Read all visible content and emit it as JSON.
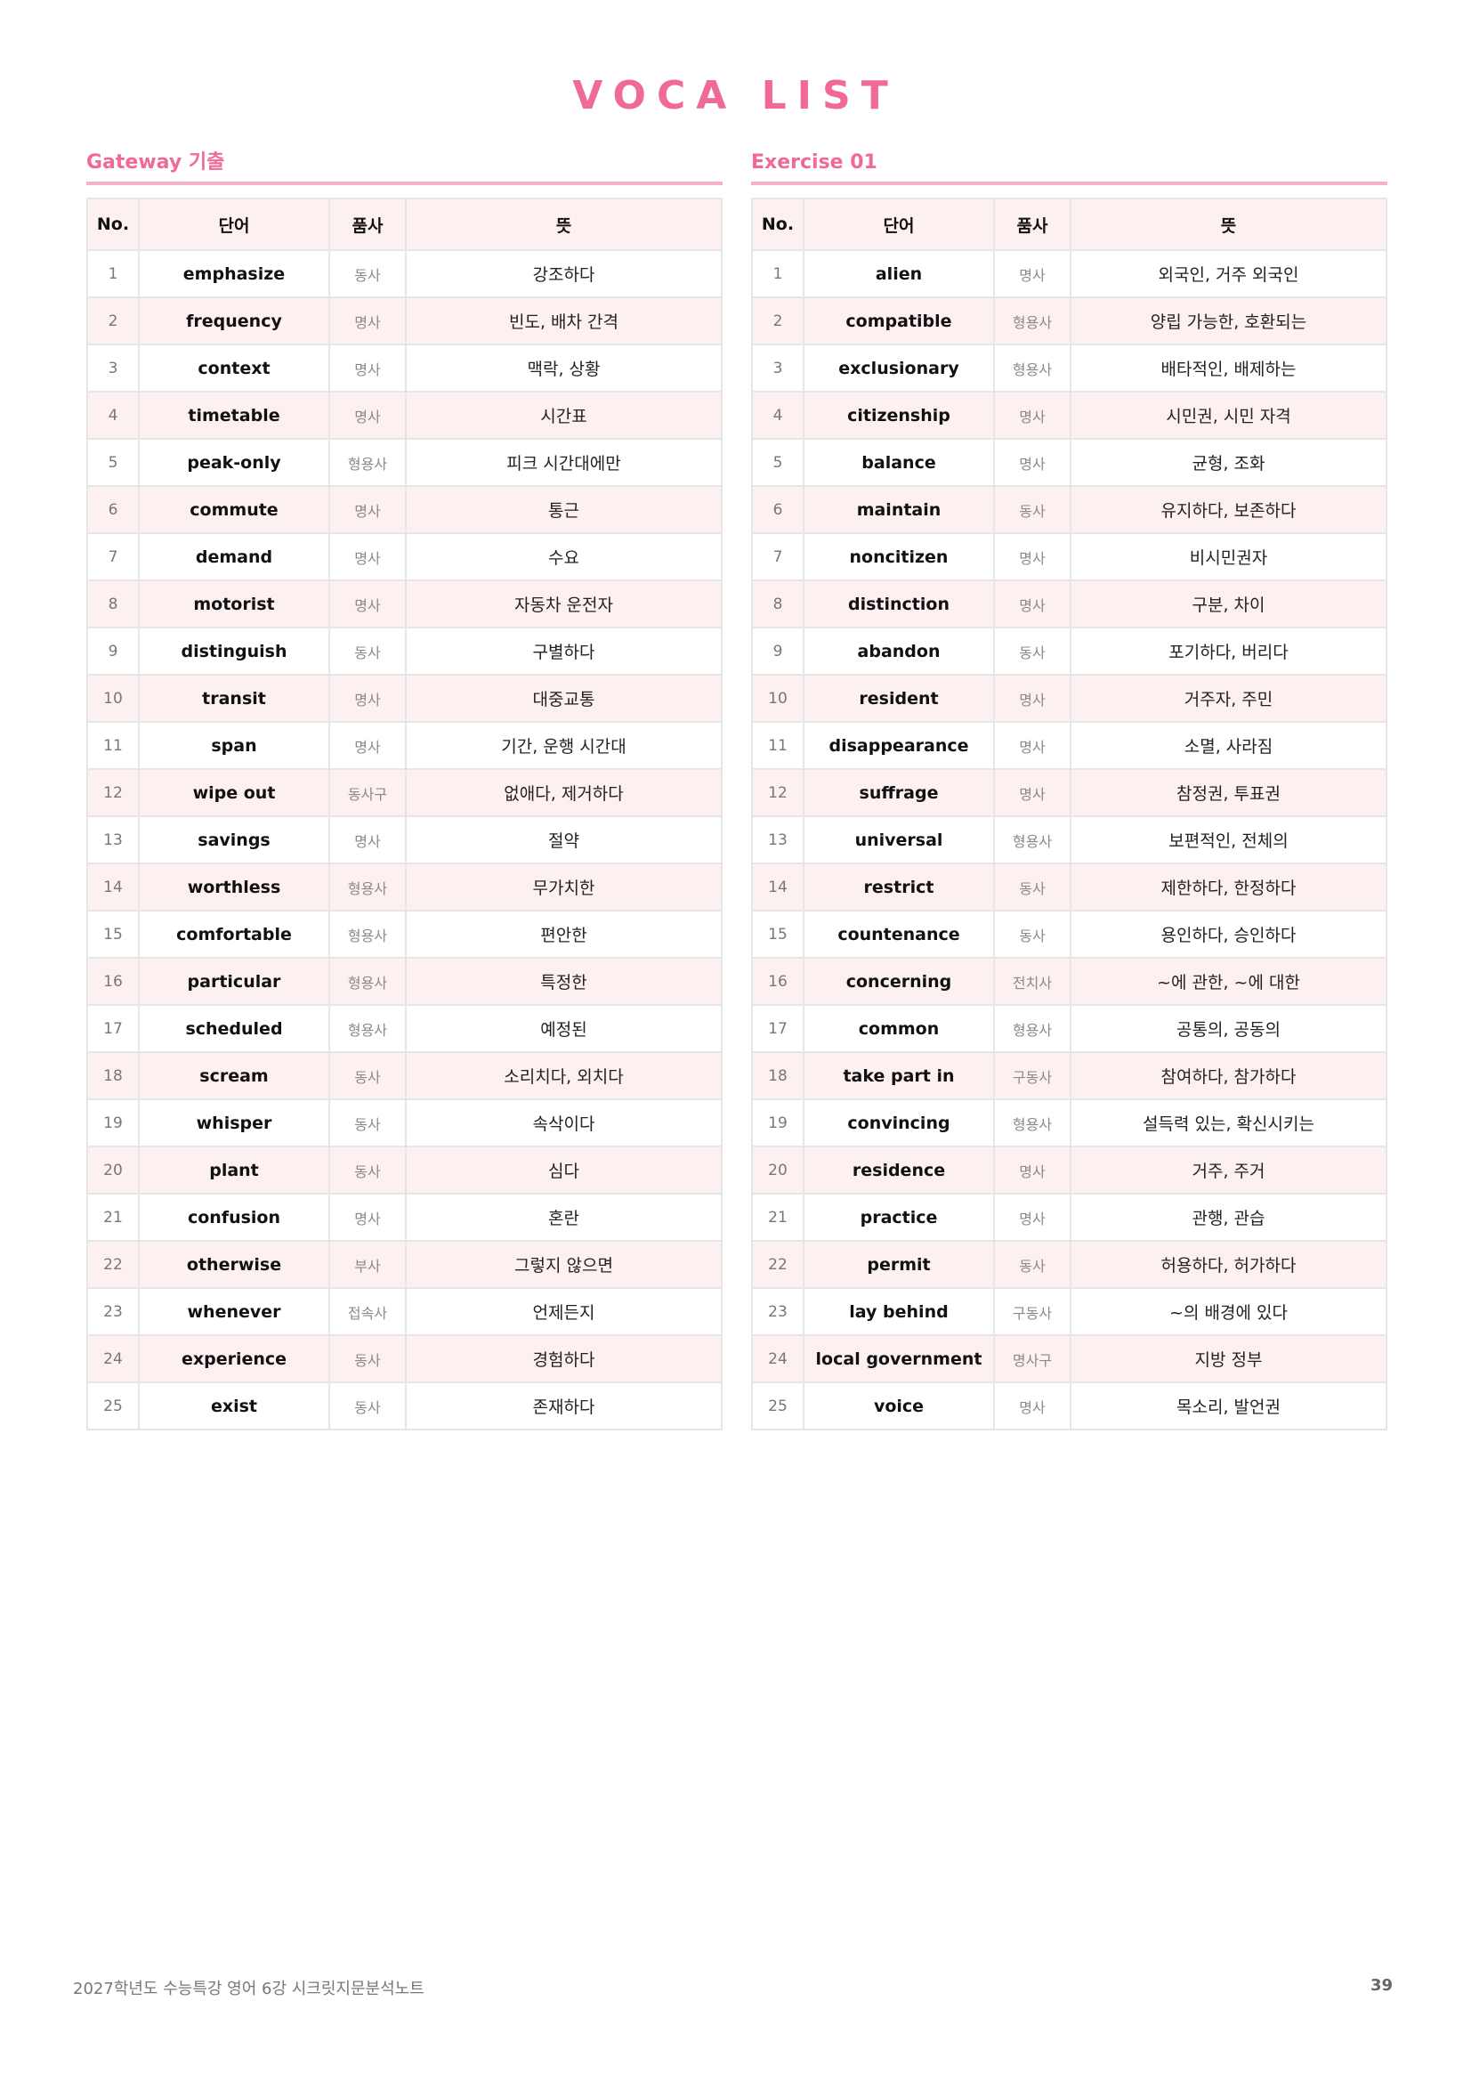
{
  "title": "VOCA LIST",
  "columns": [
    "No.",
    "단어",
    "품사",
    "뜻"
  ],
  "colors": {
    "accent": "#f06a98",
    "rule": "#f4b1c8",
    "row_alt": "#fdf0f1"
  },
  "sections": [
    {
      "label": "Gateway 기출",
      "rows": [
        [
          "1",
          "emphasize",
          "동사",
          "강조하다"
        ],
        [
          "2",
          "frequency",
          "명사",
          "빈도, 배차 간격"
        ],
        [
          "3",
          "context",
          "명사",
          "맥락, 상황"
        ],
        [
          "4",
          "timetable",
          "명사",
          "시간표"
        ],
        [
          "5",
          "peak-only",
          "형용사",
          "피크 시간대에만"
        ],
        [
          "6",
          "commute",
          "명사",
          "통근"
        ],
        [
          "7",
          "demand",
          "명사",
          "수요"
        ],
        [
          "8",
          "motorist",
          "명사",
          "자동차 운전자"
        ],
        [
          "9",
          "distinguish",
          "동사",
          "구별하다"
        ],
        [
          "10",
          "transit",
          "명사",
          "대중교통"
        ],
        [
          "11",
          "span",
          "명사",
          "기간, 운행 시간대"
        ],
        [
          "12",
          "wipe out",
          "동사구",
          "없애다, 제거하다"
        ],
        [
          "13",
          "savings",
          "명사",
          "절약"
        ],
        [
          "14",
          "worthless",
          "형용사",
          "무가치한"
        ],
        [
          "15",
          "comfortable",
          "형용사",
          "편안한"
        ],
        [
          "16",
          "particular",
          "형용사",
          "특정한"
        ],
        [
          "17",
          "scheduled",
          "형용사",
          "예정된"
        ],
        [
          "18",
          "scream",
          "동사",
          "소리치다, 외치다"
        ],
        [
          "19",
          "whisper",
          "동사",
          "속삭이다"
        ],
        [
          "20",
          "plant",
          "동사",
          "심다"
        ],
        [
          "21",
          "confusion",
          "명사",
          "혼란"
        ],
        [
          "22",
          "otherwise",
          "부사",
          "그렇지 않으면"
        ],
        [
          "23",
          "whenever",
          "접속사",
          "언제든지"
        ],
        [
          "24",
          "experience",
          "동사",
          "경험하다"
        ],
        [
          "25",
          "exist",
          "동사",
          "존재하다"
        ]
      ]
    },
    {
      "label": "Exercise 01",
      "rows": [
        [
          "1",
          "alien",
          "명사",
          "외국인, 거주 외국인"
        ],
        [
          "2",
          "compatible",
          "형용사",
          "양립 가능한, 호환되는"
        ],
        [
          "3",
          "exclusionary",
          "형용사",
          "배타적인, 배제하는"
        ],
        [
          "4",
          "citizenship",
          "명사",
          "시민권, 시민 자격"
        ],
        [
          "5",
          "balance",
          "명사",
          "균형, 조화"
        ],
        [
          "6",
          "maintain",
          "동사",
          "유지하다, 보존하다"
        ],
        [
          "7",
          "noncitizen",
          "명사",
          "비시민권자"
        ],
        [
          "8",
          "distinction",
          "명사",
          "구분, 차이"
        ],
        [
          "9",
          "abandon",
          "동사",
          "포기하다, 버리다"
        ],
        [
          "10",
          "resident",
          "명사",
          "거주자, 주민"
        ],
        [
          "11",
          "disappearance",
          "명사",
          "소멸, 사라짐"
        ],
        [
          "12",
          "suffrage",
          "명사",
          "참정권, 투표권"
        ],
        [
          "13",
          "universal",
          "형용사",
          "보편적인, 전체의"
        ],
        [
          "14",
          "restrict",
          "동사",
          "제한하다, 한정하다"
        ],
        [
          "15",
          "countenance",
          "동사",
          "용인하다, 승인하다"
        ],
        [
          "16",
          "concerning",
          "전치사",
          "~에 관한, ~에 대한"
        ],
        [
          "17",
          "common",
          "형용사",
          "공통의, 공동의"
        ],
        [
          "18",
          "take part in",
          "구동사",
          "참여하다, 참가하다"
        ],
        [
          "19",
          "convincing",
          "형용사",
          "설득력 있는, 확신시키는"
        ],
        [
          "20",
          "residence",
          "명사",
          "거주, 주거"
        ],
        [
          "21",
          "practice",
          "명사",
          "관행, 관습"
        ],
        [
          "22",
          "permit",
          "동사",
          "허용하다, 허가하다"
        ],
        [
          "23",
          "lay behind",
          "구동사",
          "~의 배경에 있다"
        ],
        [
          "24",
          "local government",
          "명사구",
          "지방 정부"
        ],
        [
          "25",
          "voice",
          "명사",
          "목소리, 발언권"
        ]
      ]
    }
  ],
  "footer": {
    "text": "2027학년도 수능특강 영어 6강 시크릿지문분석노트",
    "page": "39"
  }
}
